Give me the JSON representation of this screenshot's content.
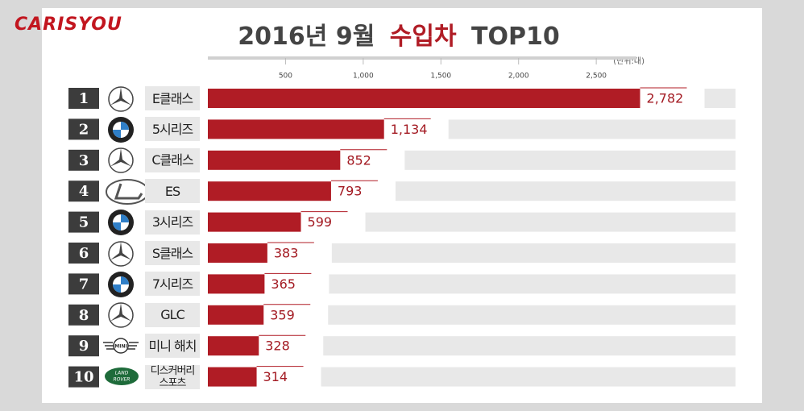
{
  "brand": "CARISYOU",
  "chart_data": {
    "type": "bar",
    "title": [
      "2016년 9월",
      "수입차",
      "TOP10"
    ],
    "unit": "(단위:대)",
    "ranks": [
      1,
      2,
      3,
      4,
      5,
      6,
      7,
      8,
      9,
      10
    ],
    "categories": [
      "E클래스",
      "5시리즈",
      "C클래스",
      "ES",
      "3시리즈",
      "S클래스",
      "7시리즈",
      "GLC",
      "미니 해치",
      "디스커버리 스포츠"
    ],
    "values": [
      2782,
      1134,
      852,
      793,
      599,
      383,
      365,
      359,
      328,
      314
    ],
    "value_labels": [
      "2,782",
      "1,134",
      "852",
      "793",
      "599",
      "383",
      "365",
      "359",
      "328",
      "314"
    ],
    "color": "#b01c25",
    "xlim": [
      0,
      2800
    ],
    "xticks": [
      500,
      {
        "value": 1000,
        "label": "1,000"
      },
      {
        "value": 1500,
        "label": "1,500"
      },
      {
        "value": 2000,
        "label": "2,000"
      },
      {
        "value": 2500,
        "label": "2,500"
      }
    ],
    "logo_texts": {
      "mini": "MINI",
      "land_rover": [
        "LAND",
        "ROVER"
      ]
    }
  }
}
